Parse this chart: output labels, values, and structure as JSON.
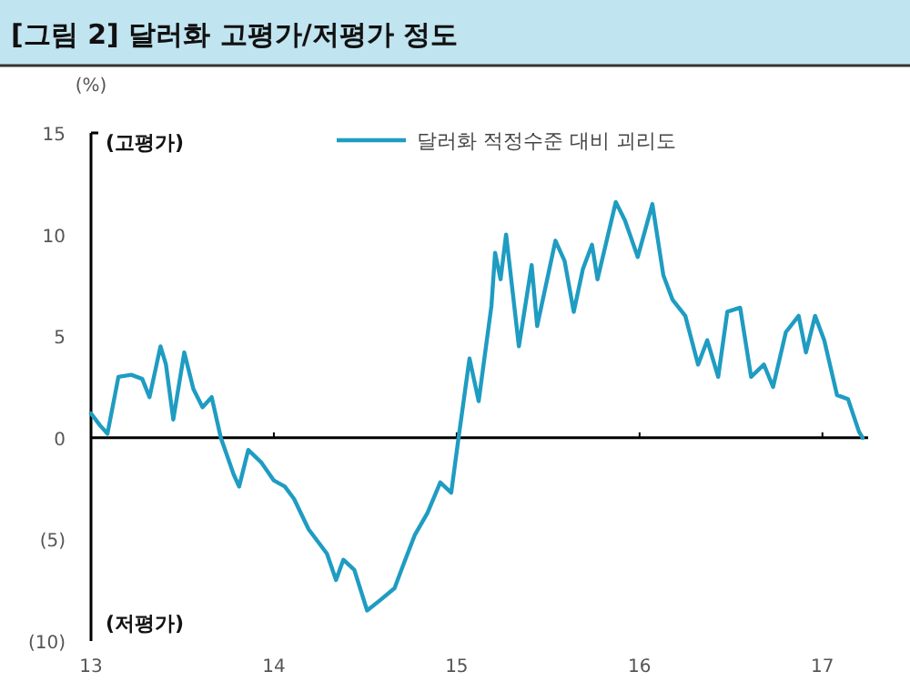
{
  "chart_data": {
    "type": "line",
    "title": "[그림 2] 달러화 고평가/저평가 정도",
    "ylabel": "(%)",
    "annotations": [
      "(고평가)",
      "(저평가)"
    ],
    "xlim": [
      13,
      17.25
    ],
    "xticks": [
      13,
      14,
      15,
      16,
      17
    ],
    "ylim": [
      -10,
      15
    ],
    "yticks": [
      {
        "value": -10,
        "label": "(10)"
      },
      {
        "value": -5,
        "label": "(5)"
      },
      0,
      5,
      10,
      15
    ],
    "grid": false,
    "legend": "top",
    "marker": "none",
    "line_style": "solid",
    "ref_lines": [
      {
        "axis": "y",
        "value": 0,
        "color": "#000000"
      }
    ],
    "series": [
      {
        "name": "달러화 적정수준 대비 괴리도",
        "color": "#1f9cc2",
        "x": [
          13.0,
          13.05,
          13.09,
          13.15,
          13.22,
          13.28,
          13.32,
          13.38,
          13.41,
          13.45,
          13.51,
          13.56,
          13.61,
          13.66,
          13.71,
          13.78,
          13.81,
          13.86,
          13.93,
          14.0,
          14.06,
          14.11,
          14.19,
          14.29,
          14.34,
          14.38,
          14.44,
          14.51,
          14.58,
          14.66,
          14.71,
          14.77,
          14.84,
          14.91,
          14.97,
          15.01,
          15.07,
          15.12,
          15.19,
          15.21,
          15.24,
          15.27,
          15.34,
          15.41,
          15.44,
          15.54,
          15.59,
          15.64,
          15.69,
          15.74,
          15.77,
          15.87,
          15.92,
          15.99,
          16.07,
          16.13,
          16.18,
          16.25,
          16.32,
          16.37,
          16.43,
          16.48,
          16.55,
          16.61,
          16.68,
          16.73,
          16.8,
          16.87,
          16.91,
          16.96,
          17.01,
          17.08,
          17.14,
          17.2,
          17.22
        ],
        "values": [
          1.2,
          0.6,
          0.2,
          3.0,
          3.1,
          2.9,
          2.0,
          4.5,
          3.6,
          0.9,
          4.2,
          2.4,
          1.5,
          2.0,
          0,
          -1.8,
          -2.4,
          -0.6,
          -1.2,
          -2.1,
          -2.4,
          -3.0,
          -4.5,
          -5.7,
          -7.0,
          -6.0,
          -6.5,
          -8.5,
          -8.0,
          -7.4,
          -6.2,
          -4.8,
          -3.7,
          -2.2,
          -2.7,
          0,
          3.9,
          1.8,
          6.5,
          9.1,
          7.8,
          10.0,
          4.5,
          8.5,
          5.5,
          9.7,
          8.7,
          6.2,
          8.3,
          9.5,
          7.8,
          11.6,
          10.7,
          8.9,
          11.5,
          8.0,
          6.8,
          6.0,
          3.6,
          4.8,
          3.0,
          6.2,
          6.4,
          3.0,
          3.6,
          2.5,
          5.2,
          6.0,
          4.2,
          6.0,
          4.8,
          2.1,
          1.9,
          0.3,
          0
        ]
      }
    ]
  }
}
